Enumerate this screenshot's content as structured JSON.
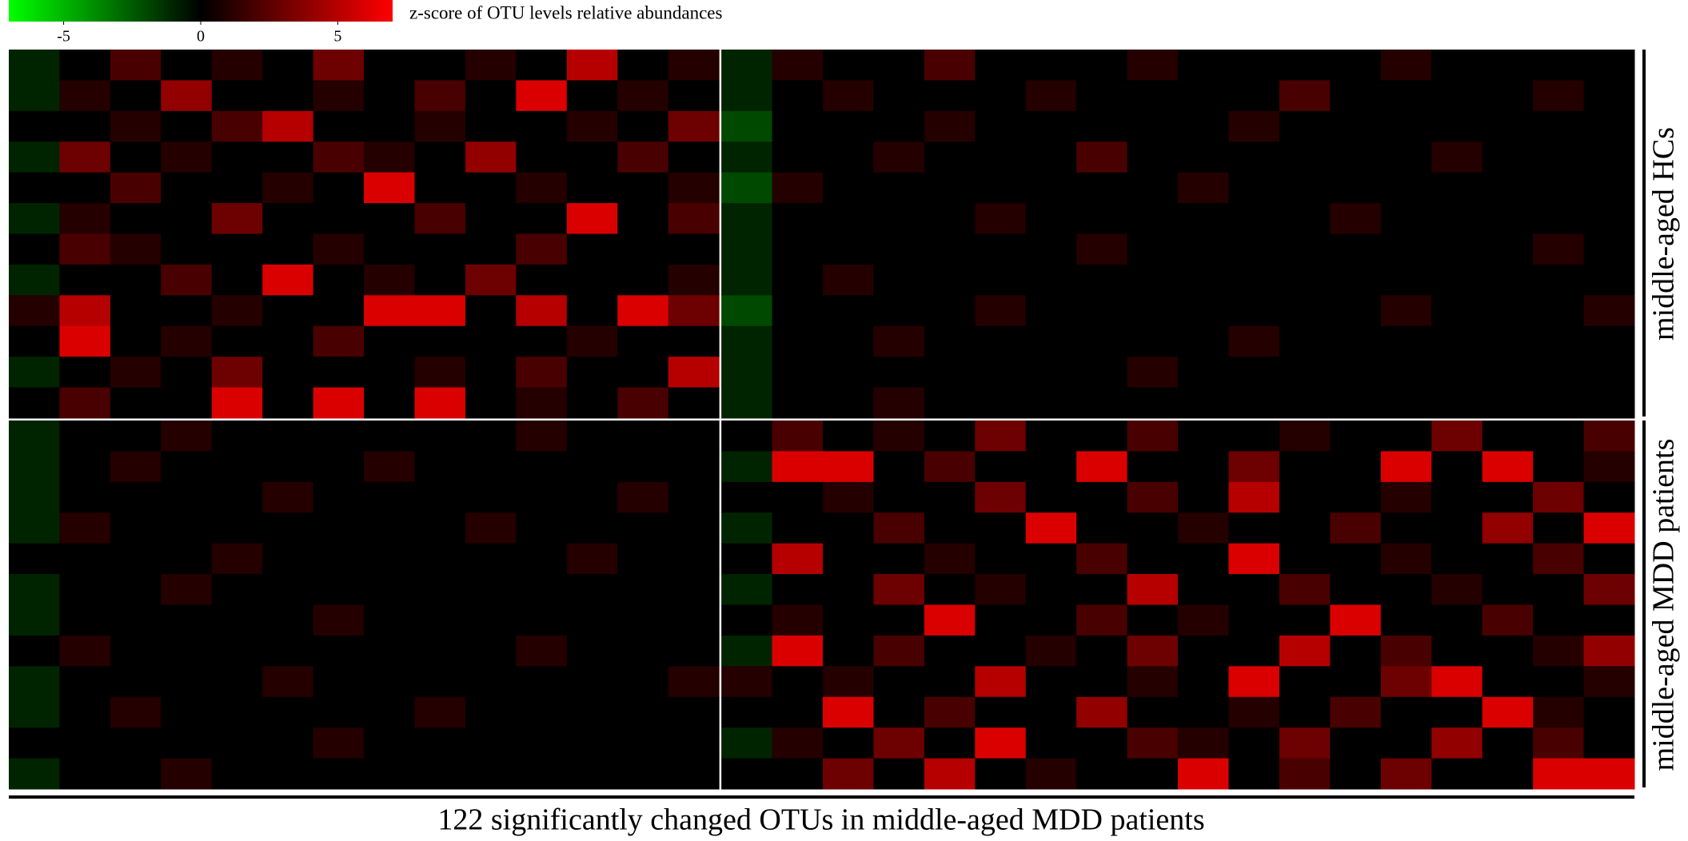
{
  "chart_data": {
    "type": "heatmap",
    "colorbar_label": "z-score of OTU levels relative abundances",
    "zlim": [
      -7,
      7
    ],
    "zticks": [
      -5,
      0,
      5
    ],
    "colors": {
      "low": "#00ff00",
      "mid": "#000000",
      "high": "#ff0000"
    },
    "xlabel": "122 significantly changed OTUs in middle-aged MDD patients",
    "row_groups": [
      {
        "name": "middle-aged HCs",
        "z": [
          [
            [
              -1,
              0,
              2,
              0,
              1,
              0,
              3,
              0,
              0,
              1,
              0,
              5,
              0,
              1
            ],
            [
              -1,
              1,
              0,
              0,
              2,
              0,
              0,
              0,
              1,
              0,
              0,
              0,
              0,
              1,
              0,
              0,
              0,
              0
            ]
          ],
          [
            [
              -1,
              1,
              0,
              4,
              0,
              0,
              1,
              0,
              2,
              0,
              6,
              0,
              1,
              0
            ],
            [
              -1,
              0,
              1,
              0,
              0,
              0,
              1,
              0,
              0,
              0,
              0,
              2,
              0,
              0,
              0,
              0,
              1,
              0
            ]
          ],
          [
            [
              0,
              0,
              1,
              0,
              2,
              5,
              0,
              0,
              1,
              0,
              0,
              1,
              0,
              3
            ],
            [
              -2,
              0,
              0,
              0,
              1,
              0,
              0,
              0,
              0,
              0,
              1,
              0,
              0,
              0,
              0,
              0,
              0,
              0
            ]
          ],
          [
            [
              -1,
              3,
              0,
              1,
              0,
              0,
              2,
              1,
              0,
              4,
              0,
              0,
              2,
              0
            ],
            [
              -1,
              0,
              0,
              1,
              0,
              0,
              0,
              2,
              0,
              0,
              0,
              0,
              0,
              0,
              1,
              0,
              0,
              0
            ]
          ],
          [
            [
              0,
              0,
              2,
              0,
              0,
              1,
              0,
              6,
              0,
              0,
              1,
              0,
              0,
              1
            ],
            [
              -2,
              1,
              0,
              0,
              0,
              0,
              0,
              0,
              0,
              1,
              0,
              0,
              0,
              0,
              0,
              0,
              0,
              0
            ]
          ],
          [
            [
              -1,
              1,
              0,
              0,
              3,
              0,
              0,
              0,
              2,
              0,
              0,
              6,
              0,
              2
            ],
            [
              -1,
              0,
              0,
              0,
              0,
              1,
              0,
              0,
              0,
              0,
              0,
              0,
              1,
              0,
              0,
              0,
              0,
              0
            ]
          ],
          [
            [
              0,
              2,
              1,
              0,
              0,
              0,
              1,
              0,
              0,
              0,
              2,
              0,
              0,
              0
            ],
            [
              -1,
              0,
              0,
              0,
              0,
              0,
              0,
              1,
              0,
              0,
              0,
              0,
              0,
              0,
              0,
              0,
              1,
              0
            ]
          ],
          [
            [
              -1,
              0,
              0,
              2,
              0,
              6,
              0,
              1,
              0,
              3,
              0,
              0,
              0,
              1
            ],
            [
              -1,
              0,
              1,
              0,
              0,
              0,
              0,
              0,
              0,
              0,
              0,
              0,
              0,
              0,
              0,
              0,
              0,
              0
            ]
          ],
          [
            [
              1,
              5,
              0,
              0,
              1,
              0,
              0,
              6,
              6,
              0,
              5,
              0,
              6,
              3
            ],
            [
              -2,
              0,
              0,
              0,
              0,
              1,
              0,
              0,
              0,
              0,
              0,
              0,
              0,
              1,
              0,
              0,
              0,
              1
            ]
          ],
          [
            [
              0,
              6,
              0,
              1,
              0,
              0,
              2,
              0,
              0,
              0,
              0,
              1,
              0,
              0
            ],
            [
              -1,
              0,
              0,
              1,
              0,
              0,
              0,
              0,
              0,
              0,
              1,
              0,
              0,
              0,
              0,
              0,
              0,
              0
            ]
          ],
          [
            [
              -1,
              0,
              1,
              0,
              3,
              0,
              0,
              0,
              1,
              0,
              2,
              0,
              0,
              5
            ],
            [
              -1,
              0,
              0,
              0,
              0,
              0,
              0,
              0,
              1,
              0,
              0,
              0,
              0,
              0,
              0,
              0,
              0,
              0
            ]
          ],
          [
            [
              0,
              2,
              0,
              0,
              6,
              0,
              6,
              0,
              6,
              0,
              1,
              0,
              2,
              0
            ],
            [
              -1,
              0,
              0,
              1,
              0,
              0,
              0,
              0,
              0,
              0,
              0,
              0,
              0,
              0,
              0,
              0,
              0,
              0
            ]
          ]
        ]
      },
      {
        "name": "middle-aged MDD patients",
        "z": [
          [
            [
              -1,
              0,
              0,
              1,
              0,
              0,
              0,
              0,
              0,
              0,
              1,
              0,
              0,
              0
            ],
            [
              0,
              2,
              0,
              1,
              0,
              3,
              0,
              0,
              2,
              0,
              0,
              1,
              0,
              0,
              3,
              0,
              0,
              2
            ]
          ],
          [
            [
              -1,
              0,
              1,
              0,
              0,
              0,
              0,
              1,
              0,
              0,
              0,
              0,
              0,
              0
            ],
            [
              -1,
              6,
              6,
              0,
              2,
              0,
              0,
              6,
              0,
              0,
              3,
              0,
              0,
              6,
              0,
              6,
              0,
              1
            ]
          ],
          [
            [
              -1,
              0,
              0,
              0,
              0,
              1,
              0,
              0,
              0,
              0,
              0,
              0,
              1,
              0
            ],
            [
              0,
              0,
              1,
              0,
              0,
              3,
              0,
              0,
              2,
              0,
              5,
              0,
              0,
              1,
              0,
              0,
              3,
              0
            ]
          ],
          [
            [
              -1,
              1,
              0,
              0,
              0,
              0,
              0,
              0,
              0,
              1,
              0,
              0,
              0,
              0
            ],
            [
              -1,
              0,
              0,
              2,
              0,
              0,
              6,
              0,
              0,
              1,
              0,
              0,
              2,
              0,
              0,
              4,
              0,
              6
            ]
          ],
          [
            [
              0,
              0,
              0,
              0,
              1,
              0,
              0,
              0,
              0,
              0,
              0,
              1,
              0,
              0
            ],
            [
              0,
              5,
              0,
              0,
              1,
              0,
              0,
              2,
              0,
              0,
              6,
              0,
              0,
              1,
              0,
              0,
              2,
              0
            ]
          ],
          [
            [
              -1,
              0,
              0,
              1,
              0,
              0,
              0,
              0,
              0,
              0,
              0,
              0,
              0,
              0
            ],
            [
              -1,
              0,
              0,
              3,
              0,
              1,
              0,
              0,
              5,
              0,
              0,
              2,
              0,
              0,
              1,
              0,
              0,
              3
            ]
          ],
          [
            [
              -1,
              0,
              0,
              0,
              0,
              0,
              1,
              0,
              0,
              0,
              0,
              0,
              0,
              0
            ],
            [
              0,
              1,
              0,
              0,
              6,
              0,
              0,
              2,
              0,
              1,
              0,
              0,
              6,
              0,
              0,
              2,
              0,
              0
            ]
          ],
          [
            [
              0,
              1,
              0,
              0,
              0,
              0,
              0,
              0,
              0,
              0,
              1,
              0,
              0,
              0
            ],
            [
              -1,
              6,
              0,
              2,
              0,
              0,
              1,
              0,
              3,
              0,
              0,
              5,
              0,
              2,
              0,
              0,
              1,
              4
            ]
          ],
          [
            [
              -1,
              0,
              0,
              0,
              0,
              1,
              0,
              0,
              0,
              0,
              0,
              0,
              0,
              1
            ],
            [
              1,
              0,
              1,
              0,
              0,
              5,
              0,
              0,
              1,
              0,
              6,
              0,
              0,
              3,
              6,
              0,
              0,
              1
            ]
          ],
          [
            [
              -1,
              0,
              1,
              0,
              0,
              0,
              0,
              0,
              1,
              0,
              0,
              0,
              0,
              0
            ],
            [
              0,
              0,
              6,
              0,
              2,
              0,
              0,
              4,
              0,
              0,
              1,
              0,
              2,
              0,
              0,
              6,
              1,
              0
            ]
          ],
          [
            [
              0,
              0,
              0,
              0,
              0,
              0,
              1,
              0,
              0,
              0,
              0,
              0,
              0,
              0
            ],
            [
              -1,
              1,
              0,
              3,
              0,
              6,
              0,
              0,
              2,
              1,
              0,
              3,
              0,
              0,
              4,
              0,
              2,
              0
            ]
          ],
          [
            [
              -1,
              0,
              0,
              1,
              0,
              0,
              0,
              0,
              0,
              0,
              0,
              0,
              0,
              0
            ],
            [
              0,
              0,
              3,
              0,
              5,
              0,
              1,
              0,
              0,
              6,
              0,
              2,
              0,
              3,
              0,
              0,
              6,
              6
            ]
          ]
        ]
      }
    ]
  }
}
